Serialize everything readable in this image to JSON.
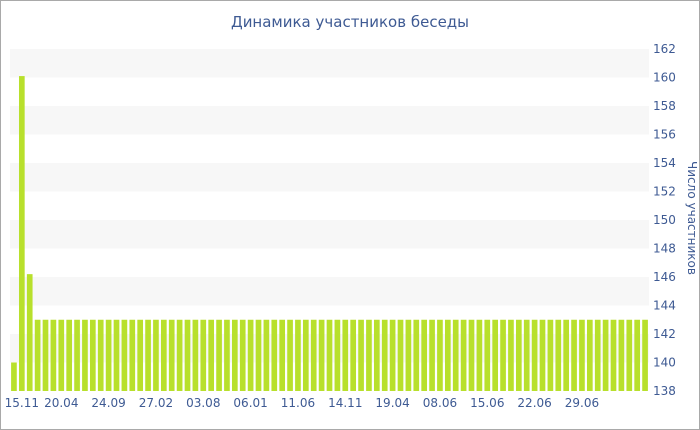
{
  "chart_data": {
    "type": "bar",
    "title": "Динамика участников беседы",
    "ylabel": "Число участников",
    "xlabel": "",
    "ylim": [
      138,
      162
    ],
    "yticks": [
      138,
      140,
      142,
      144,
      146,
      148,
      150,
      152,
      154,
      156,
      158,
      160,
      162
    ],
    "y_axis_position": "right",
    "grid": "alternating-bands",
    "bar_color": "#b8e02c",
    "band_color": "#f7f7f7",
    "text_color": "#3e5a93",
    "x_ticks": [
      {
        "label": "15.11",
        "index": 1
      },
      {
        "label": "20.04",
        "index": 6
      },
      {
        "label": "24.09",
        "index": 12
      },
      {
        "label": "27.02",
        "index": 18
      },
      {
        "label": "03.08",
        "index": 24
      },
      {
        "label": "06.01",
        "index": 30
      },
      {
        "label": "11.06",
        "index": 36
      },
      {
        "label": "14.11",
        "index": 42
      },
      {
        "label": "19.04",
        "index": 48
      },
      {
        "label": "08.06",
        "index": 54
      },
      {
        "label": "15.06",
        "index": 60
      },
      {
        "label": "22.06",
        "index": 66
      },
      {
        "label": "29.06",
        "index": 72
      }
    ],
    "values": [
      140,
      160.1,
      146.2,
      143,
      143,
      143,
      143,
      143,
      143,
      143,
      143,
      143,
      143,
      143,
      143,
      143,
      143,
      143,
      143,
      143,
      143,
      143,
      143,
      143,
      143,
      143,
      143,
      143,
      143,
      143,
      143,
      143,
      143,
      143,
      143,
      143,
      143,
      143,
      143,
      143,
      143,
      143,
      143,
      143,
      143,
      143,
      143,
      143,
      143,
      143,
      143,
      143,
      143,
      143,
      143,
      143,
      143,
      143,
      143,
      143,
      143,
      143,
      143,
      143,
      143,
      143,
      143,
      143,
      143,
      143,
      143,
      143,
      143,
      143,
      143,
      143,
      143,
      143,
      143,
      143,
      143
    ]
  }
}
